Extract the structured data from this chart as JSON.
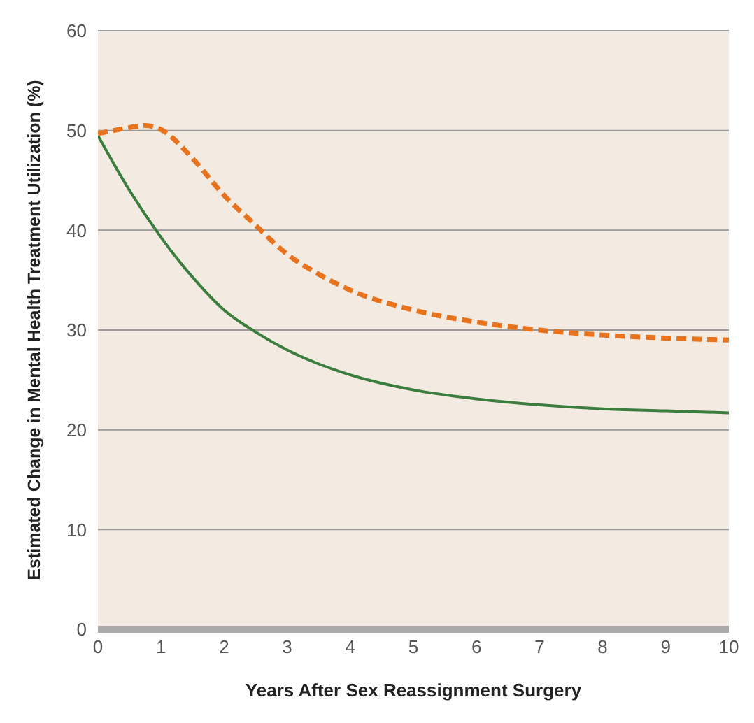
{
  "chart_data": {
    "type": "line",
    "xlabel": "Years After Sex Reassignment Surgery",
    "ylabel": "Estimated Change in Mental Health Treatment Utilization (%)",
    "xlim": [
      0,
      10
    ],
    "xticks": [
      0,
      1,
      2,
      3,
      4,
      5,
      6,
      7,
      8,
      9,
      10
    ],
    "ylim": [
      0,
      60
    ],
    "yticks": [
      0,
      10,
      20,
      30,
      40,
      50,
      60
    ],
    "grid": "y",
    "marker": "none",
    "series": [
      {
        "color": "#3a7d3c",
        "line_style": "solid",
        "x": [
          0,
          0.5,
          1,
          1.5,
          2,
          2.5,
          3,
          3.5,
          4,
          5,
          6,
          7,
          8,
          9,
          10
        ],
        "values": [
          49.5,
          44,
          39.3,
          35.3,
          32,
          29.8,
          28,
          26.6,
          25.5,
          24,
          23.1,
          22.5,
          22.1,
          21.9,
          21.7
        ]
      },
      {
        "color": "#e8731e",
        "line_style": "dashed",
        "x": [
          0,
          0.25,
          0.5,
          0.75,
          1,
          1.5,
          2,
          2.5,
          3,
          3.5,
          4,
          5,
          6,
          7,
          8,
          9,
          10
        ],
        "values": [
          49.7,
          50,
          50.3,
          50.5,
          50.1,
          47.2,
          43.5,
          40.5,
          37.6,
          35.6,
          34,
          32,
          30.8,
          30,
          29.5,
          29.2,
          29
        ]
      }
    ]
  }
}
